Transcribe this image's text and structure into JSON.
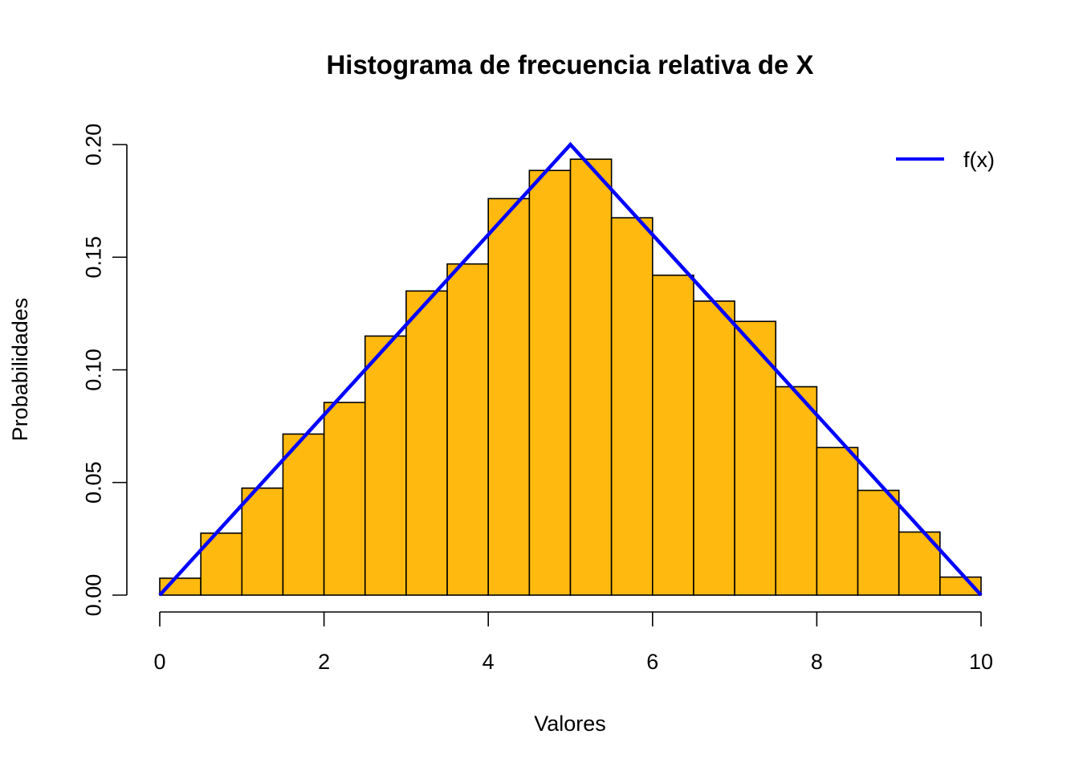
{
  "chart_data": {
    "type": "bar",
    "title": "Histograma de frecuencia relativa de X",
    "xlabel": "Valores",
    "ylabel": "Probabilidades",
    "xlim": [
      0,
      10
    ],
    "ylim": [
      0,
      0.2
    ],
    "x_ticks": [
      "0",
      "2",
      "4",
      "6",
      "8",
      "10"
    ],
    "y_ticks": [
      "0.00",
      "0.05",
      "0.10",
      "0.15",
      "0.20"
    ],
    "bin_edges": [
      0,
      0.5,
      1,
      1.5,
      2,
      2.5,
      3,
      3.5,
      4,
      4.5,
      5,
      5.5,
      6,
      6.5,
      7,
      7.5,
      8,
      8.5,
      9,
      9.5,
      10
    ],
    "values": [
      0.0075,
      0.0275,
      0.0475,
      0.0715,
      0.0855,
      0.115,
      0.135,
      0.147,
      0.176,
      0.1885,
      0.1935,
      0.1675,
      0.142,
      0.1305,
      0.1215,
      0.0925,
      0.0655,
      0.0465,
      0.028,
      0.008
    ],
    "bar_color": "#FFB90F",
    "series": [
      {
        "name": "f(x)",
        "type": "line",
        "color": "#0000FF",
        "x": [
          0,
          5,
          10
        ],
        "y": [
          0,
          0.2,
          0
        ]
      }
    ],
    "legend": {
      "position": "top-right",
      "entries": [
        "f(x)"
      ]
    },
    "grid": false
  }
}
